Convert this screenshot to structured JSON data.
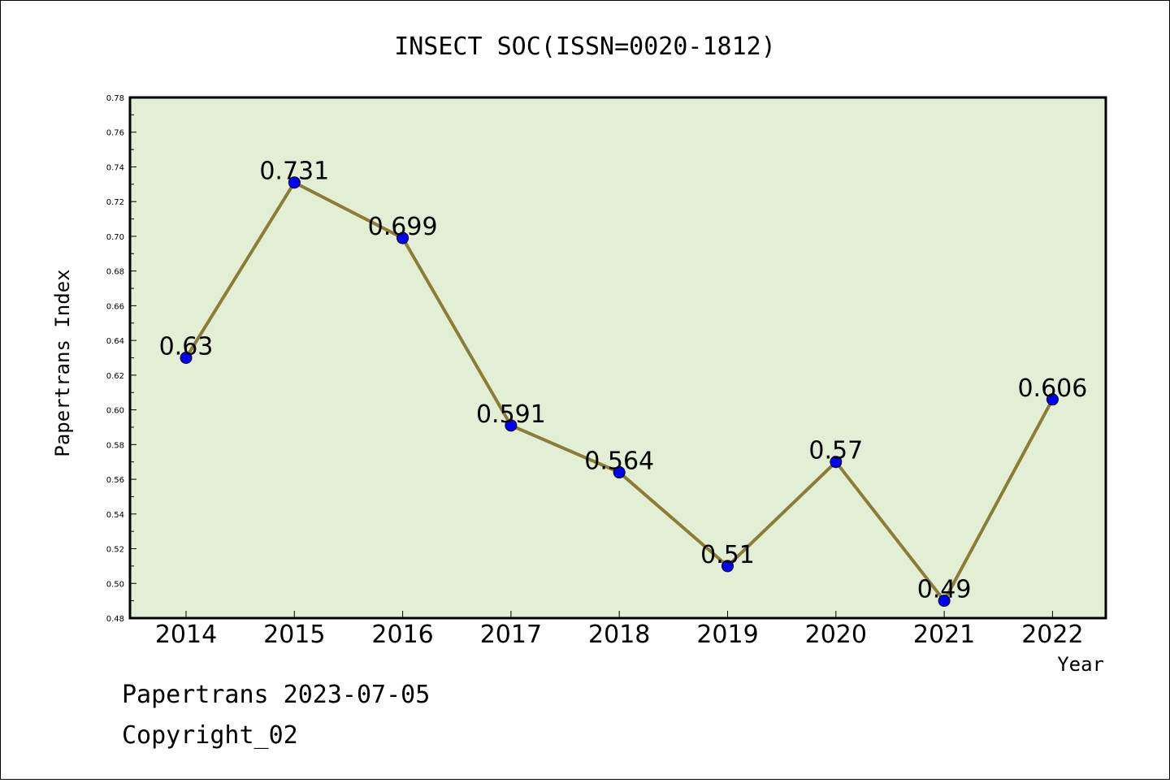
{
  "chart_data": {
    "type": "line",
    "title": "INSECT SOC(ISSN=0020-1812)",
    "xlabel": "Year",
    "ylabel": "Papertrans Index",
    "categories": [
      "2014",
      "2015",
      "2016",
      "2017",
      "2018",
      "2019",
      "2020",
      "2021",
      "2022"
    ],
    "values": [
      0.63,
      0.731,
      0.699,
      0.591,
      0.564,
      0.51,
      0.57,
      0.49,
      0.606
    ],
    "data_labels": [
      "0.63",
      "0.731",
      "0.699",
      "0.591",
      "0.564",
      "0.51",
      "0.57",
      "0.49",
      "0.606"
    ],
    "ylim": [
      0.48,
      0.78
    ],
    "yticks": [
      "0.48",
      "0.50",
      "0.52",
      "0.54",
      "0.56",
      "0.58",
      "0.60",
      "0.62",
      "0.64",
      "0.66",
      "0.68",
      "0.70",
      "0.72",
      "0.74",
      "0.76",
      "0.78"
    ],
    "grid": false,
    "colors": {
      "plot_background": "#e2efd4",
      "line": "#8b7d35",
      "marker": "#0000ff"
    }
  },
  "footer": {
    "line1": "Papertrans 2023-07-05",
    "line2": "Copyright_02"
  }
}
